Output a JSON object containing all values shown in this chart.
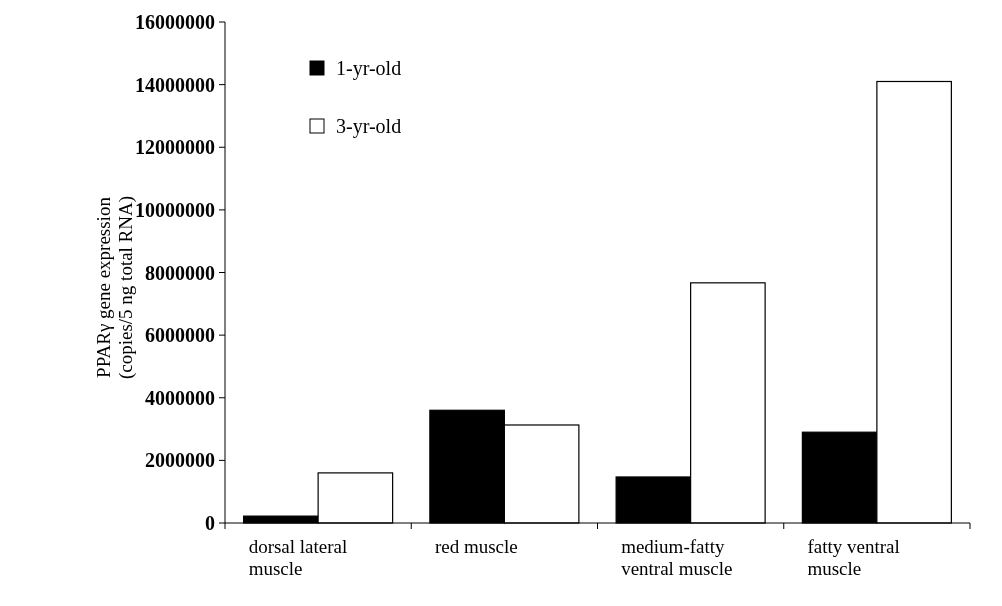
{
  "chart_data": {
    "type": "bar",
    "ylabel": "PPARγ gene expression\n(copies/5 ng total RNA)",
    "categories": [
      "dorsal lateral muscle",
      "red muscle",
      "medium-fatty ventral muscle",
      "fatty ventral muscle"
    ],
    "series": [
      {
        "name": "1-yr-old",
        "color": "#000000",
        "values": [
          220000,
          3600000,
          1470000,
          2900000
        ]
      },
      {
        "name": "3-yr-old",
        "color": "#ffffff",
        "values": [
          1600000,
          3130000,
          7670000,
          14100000
        ]
      }
    ],
    "ylim": [
      0,
      16000000
    ],
    "yticks": [
      0,
      2000000,
      4000000,
      6000000,
      8000000,
      10000000,
      12000000,
      14000000,
      16000000
    ],
    "legend": "top",
    "grid": false
  }
}
